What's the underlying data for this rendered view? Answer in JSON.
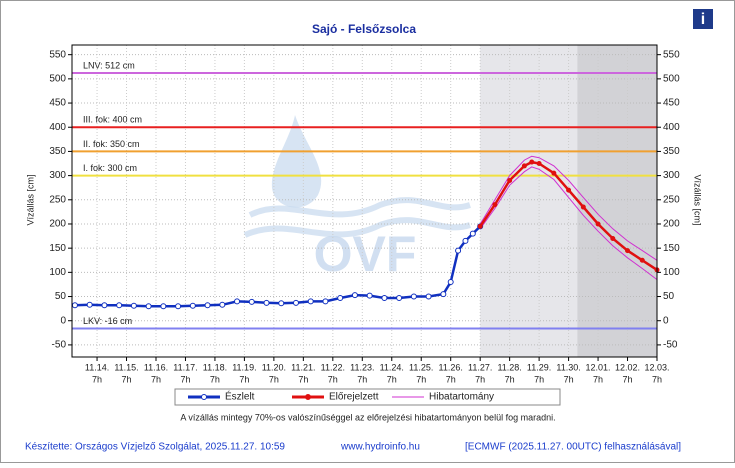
{
  "chart_data": {
    "type": "line",
    "title": "Sajó - Felsőzsolca",
    "ylabel": "Vízállás [cm]",
    "y2label": "Vízállás [cm]",
    "watermark": "OVF",
    "info_icon": "i",
    "note": "A vízállás mintegy 70%-os valószínűséggel az előrejelzési hibatartományon belül fog maradni.",
    "footer_left": "Készítette: Országos Vízjelző Szolgálat, 2025.11.27. 10:59",
    "footer_center": "www.hydroinfo.hu",
    "footer_right": "[ECMWF (2025.11.27. 00UTC) felhasználásával]",
    "xlim": [
      -0.85,
      19
    ],
    "ylim": [
      -75,
      570
    ],
    "yticks": [
      -50,
      0,
      50,
      100,
      150,
      200,
      250,
      300,
      350,
      400,
      450,
      500,
      550
    ],
    "xticks": [
      {
        "value": 0,
        "label": "11.14."
      },
      {
        "value": 1,
        "label": "11.15."
      },
      {
        "value": 2,
        "label": "11.16."
      },
      {
        "value": 3,
        "label": "11.17."
      },
      {
        "value": 4,
        "label": "11.18."
      },
      {
        "value": 5,
        "label": "11.19."
      },
      {
        "value": 6,
        "label": "11.20."
      },
      {
        "value": 7,
        "label": "11.21."
      },
      {
        "value": 8,
        "label": "11.22."
      },
      {
        "value": 9,
        "label": "11.23."
      },
      {
        "value": 10,
        "label": "11.24."
      },
      {
        "value": 11,
        "label": "11.25."
      },
      {
        "value": 12,
        "label": "11.26."
      },
      {
        "value": 13,
        "label": "11.27."
      },
      {
        "value": 14,
        "label": "11.28."
      },
      {
        "value": 15,
        "label": "11.29."
      },
      {
        "value": 16,
        "label": "11.30."
      },
      {
        "value": 17,
        "label": "12.01."
      },
      {
        "value": 18,
        "label": "12.02."
      },
      {
        "value": 19,
        "label": "12.03."
      }
    ],
    "xtick_sublabel": "7h",
    "grid": true,
    "shaded_regions": [
      {
        "from": 13,
        "to": 19,
        "color": "#e6e6ea"
      },
      {
        "from": 16.3,
        "to": 19,
        "color": "#d2d2d6"
      }
    ],
    "thresholds": [
      {
        "label": "LNV: 512 cm",
        "value": 512,
        "color": "#cc66dd"
      },
      {
        "label": "III. fok: 400 cm",
        "value": 400,
        "color": "#e82020"
      },
      {
        "label": "II. fok: 350 cm",
        "value": 350,
        "color": "#f0a030"
      },
      {
        "label": "I. fok: 300 cm",
        "value": 300,
        "color": "#f0e040"
      },
      {
        "label": "LKV: -16 cm",
        "value": -16,
        "color": "#8080f0"
      }
    ],
    "series": [
      {
        "name": "Észlelt",
        "color": "#1030c0",
        "x": [
          -0.75,
          -0.25,
          0.25,
          0.75,
          1.25,
          1.75,
          2.25,
          2.75,
          3.25,
          3.75,
          4.25,
          4.75,
          5.25,
          5.75,
          6.25,
          6.75,
          7.25,
          7.75,
          8.25,
          8.75,
          9.25,
          9.75,
          10.25,
          10.75,
          11.25,
          11.75,
          12.0,
          12.25,
          12.5,
          12.75,
          13.0
        ],
        "values": [
          32,
          33,
          32,
          32,
          31,
          30,
          30,
          30,
          31,
          32,
          33,
          40,
          39,
          37,
          36,
          37,
          40,
          40,
          47,
          53,
          52,
          47,
          47,
          50,
          50,
          55,
          80,
          145,
          165,
          180,
          195
        ]
      },
      {
        "name": "Előrejelzett",
        "color": "#e01010",
        "x": [
          13.0,
          13.5,
          14.0,
          14.5,
          14.75,
          15.0,
          15.5,
          16.0,
          16.5,
          17.0,
          17.5,
          18.0,
          18.5,
          19.0
        ],
        "values": [
          195,
          240,
          290,
          320,
          328,
          325,
          305,
          270,
          235,
          200,
          170,
          145,
          125,
          105
        ]
      },
      {
        "name": "Hibatartomány",
        "color": "#d030d0",
        "x": [
          13.0,
          13.5,
          14.0,
          14.5,
          14.75,
          15.0,
          15.5,
          16.0,
          16.5,
          17.0,
          17.5,
          18.0,
          18.5,
          19.0
        ],
        "upper": [
          200,
          250,
          300,
          332,
          340,
          337,
          320,
          290,
          255,
          220,
          190,
          165,
          145,
          125
        ],
        "lower": [
          190,
          232,
          280,
          308,
          318,
          313,
          292,
          255,
          218,
          185,
          155,
          130,
          108,
          85
        ]
      }
    ]
  }
}
